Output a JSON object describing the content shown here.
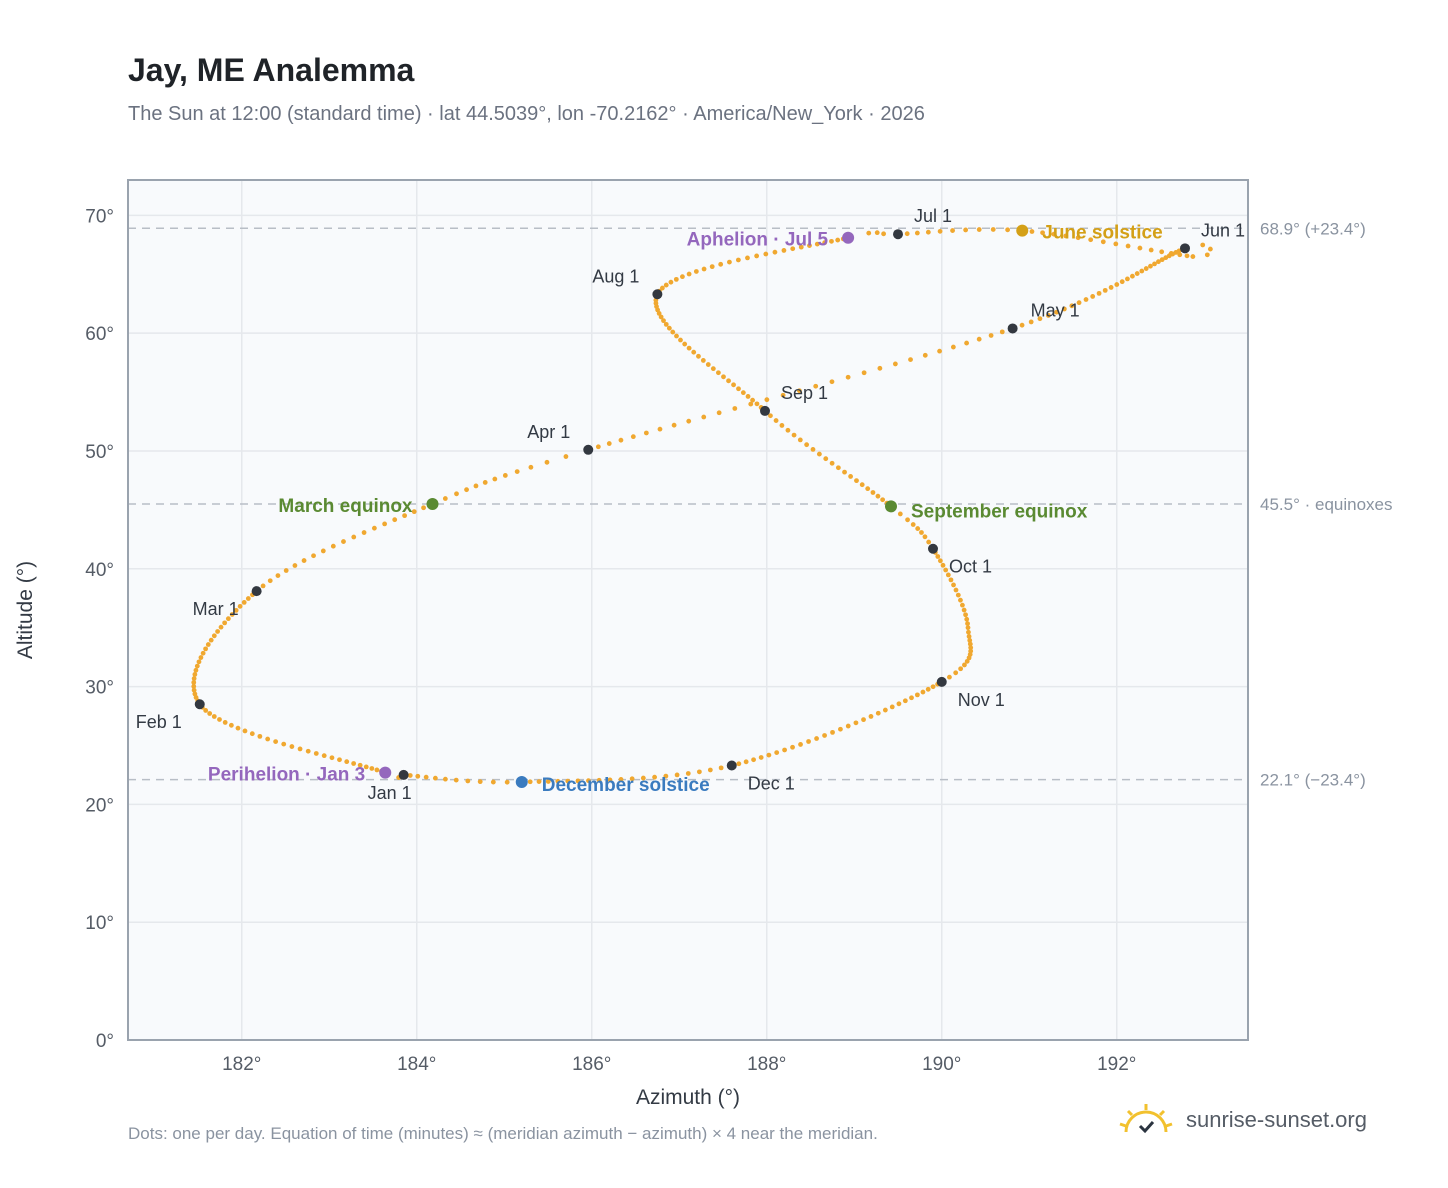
{
  "header": {
    "title": "Jay, ME Analemma",
    "subtitle": "The Sun at 12:00 (standard time) · lat 44.5039°, lon -70.2162° · America/New_York · 2026"
  },
  "footer": {
    "note": "Dots: one per day. Equation of time (minutes) ≈ (meridian azimuth − azimuth) × 4 near the meridian.",
    "brand": "sunrise-sunset.org",
    "brand_icon": "sun-check-icon"
  },
  "chart_data": {
    "type": "scatter",
    "xlabel": "Azimuth (°)",
    "ylabel": "Altitude (°)",
    "xlim": [
      180.7,
      193.5
    ],
    "ylim": [
      0,
      73
    ],
    "xticks": [
      182,
      184,
      186,
      188,
      190,
      192
    ],
    "xtick_labels": [
      "182°",
      "184°",
      "186°",
      "188°",
      "190°",
      "192°"
    ],
    "yticks": [
      0,
      10,
      20,
      30,
      40,
      50,
      60,
      70
    ],
    "ytick_labels": [
      "0°",
      "10°",
      "20°",
      "30°",
      "40°",
      "50°",
      "60°",
      "70°"
    ],
    "grid": true,
    "colors": {
      "path": "#f0a830",
      "month": "#333840",
      "equinox": "#5a8a32",
      "june": "#d4a017",
      "december": "#3a7bbf",
      "apsis": "#9467bd",
      "ref_line": "#b8bec6",
      "frame": "#9aa3ae",
      "plot_bg": "#f8fafc",
      "grid": "#e5e8ec"
    },
    "reference_lines": [
      {
        "y": 68.9,
        "label": "68.9° (+23.4°)"
      },
      {
        "y": 45.5,
        "label": "45.5° · equinoxes"
      },
      {
        "y": 22.1,
        "label": "22.1° (−23.4°)"
      }
    ],
    "month_markers": [
      {
        "label": "Jan 1",
        "az": 183.85,
        "alt": 22.5
      },
      {
        "label": "Feb 1",
        "az": 181.52,
        "alt": 28.5
      },
      {
        "label": "Mar 1",
        "az": 182.17,
        "alt": 38.1
      },
      {
        "label": "Apr 1",
        "az": 185.96,
        "alt": 50.1
      },
      {
        "label": "May 1",
        "az": 190.81,
        "alt": 60.4
      },
      {
        "label": "Jun 1",
        "az": 192.78,
        "alt": 67.2
      },
      {
        "label": "Jul 1",
        "az": 189.5,
        "alt": 68.4
      },
      {
        "label": "Aug 1",
        "az": 186.75,
        "alt": 63.3
      },
      {
        "label": "Sep 1",
        "az": 187.98,
        "alt": 53.4
      },
      {
        "label": "Oct 1",
        "az": 189.9,
        "alt": 41.7
      },
      {
        "label": "Nov 1",
        "az": 190.0,
        "alt": 30.4
      },
      {
        "label": "Dec 1",
        "az": 187.6,
        "alt": 23.3
      }
    ],
    "events": [
      {
        "label": "March equinox",
        "az": 184.18,
        "alt": 45.5,
        "kind": "equinox"
      },
      {
        "label": "September equinox",
        "az": 189.42,
        "alt": 45.3,
        "kind": "equinox"
      },
      {
        "label": "June solstice",
        "az": 190.92,
        "alt": 68.7,
        "kind": "june"
      },
      {
        "label": "December solstice",
        "az": 185.2,
        "alt": 21.9,
        "kind": "december"
      },
      {
        "label": "Aphelion · Jul 5",
        "az": 188.93,
        "alt": 68.1,
        "kind": "apsis"
      },
      {
        "label": "Perihelion · Jan 3",
        "az": 183.64,
        "alt": 22.7,
        "kind": "apsis"
      }
    ]
  }
}
